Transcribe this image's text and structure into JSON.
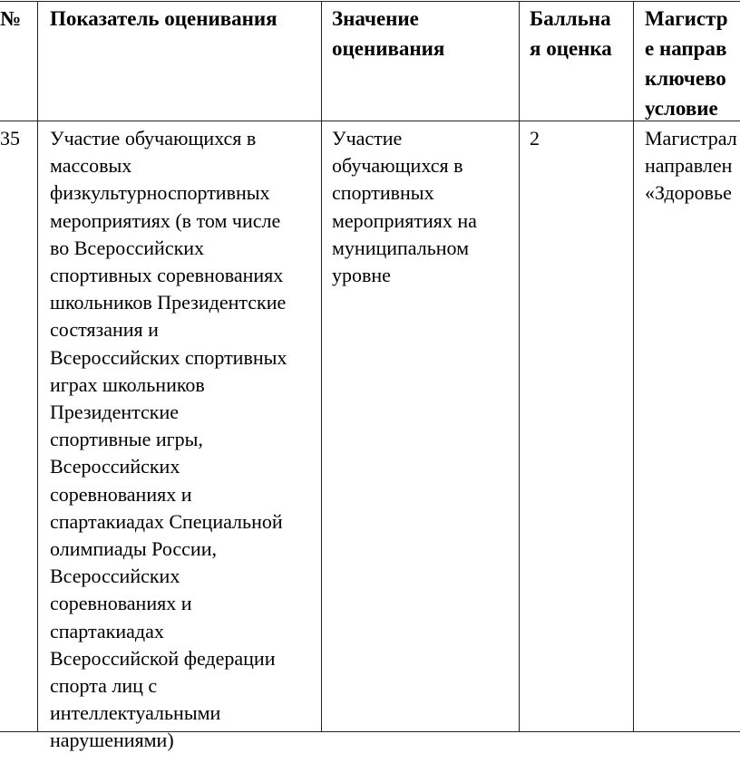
{
  "table": {
    "headers": [
      {
        "lines": [
          "№"
        ]
      },
      {
        "lines": [
          "Показатель оценивания"
        ]
      },
      {
        "lines": [
          "Значение",
          "оценивания"
        ]
      },
      {
        "lines": [
          "Балльна",
          "я оценка"
        ]
      },
      {
        "lines": [
          "Магистр",
          "е направ",
          "ключево",
          "условие"
        ]
      }
    ],
    "rows": [
      {
        "cells": [
          {
            "lines": [
              "35"
            ]
          },
          {
            "lines": [
              "Участие обучающихся в",
              "массовых",
              "физкультурноспортивных",
              "мероприятиях (в том числе",
              "во Всероссийских",
              "спортивных соревнованиях",
              "школьников Президентские",
              "состязания и",
              "Всероссийских спортивных",
              "играх школьников",
              "Президентские",
              "спортивные игры,",
              "Всероссийских",
              "соревнованиях и",
              "спартакиадах Специальной",
              "олимпиады России,",
              "Всероссийских",
              "соревнованиях и",
              "спартакиадах",
              "Всероссийской федерации",
              "спорта лиц с",
              "интеллектуальными",
              "нарушениями)"
            ]
          },
          {
            "lines": [
              "Участие",
              "обучающихся в",
              "спортивных",
              "мероприятиях на",
              "муниципальном",
              "уровне"
            ]
          },
          {
            "lines": [
              "2"
            ]
          },
          {
            "lines": [
              "Магистрал",
              "направлен",
              "«Здоровье"
            ]
          }
        ]
      }
    ]
  }
}
